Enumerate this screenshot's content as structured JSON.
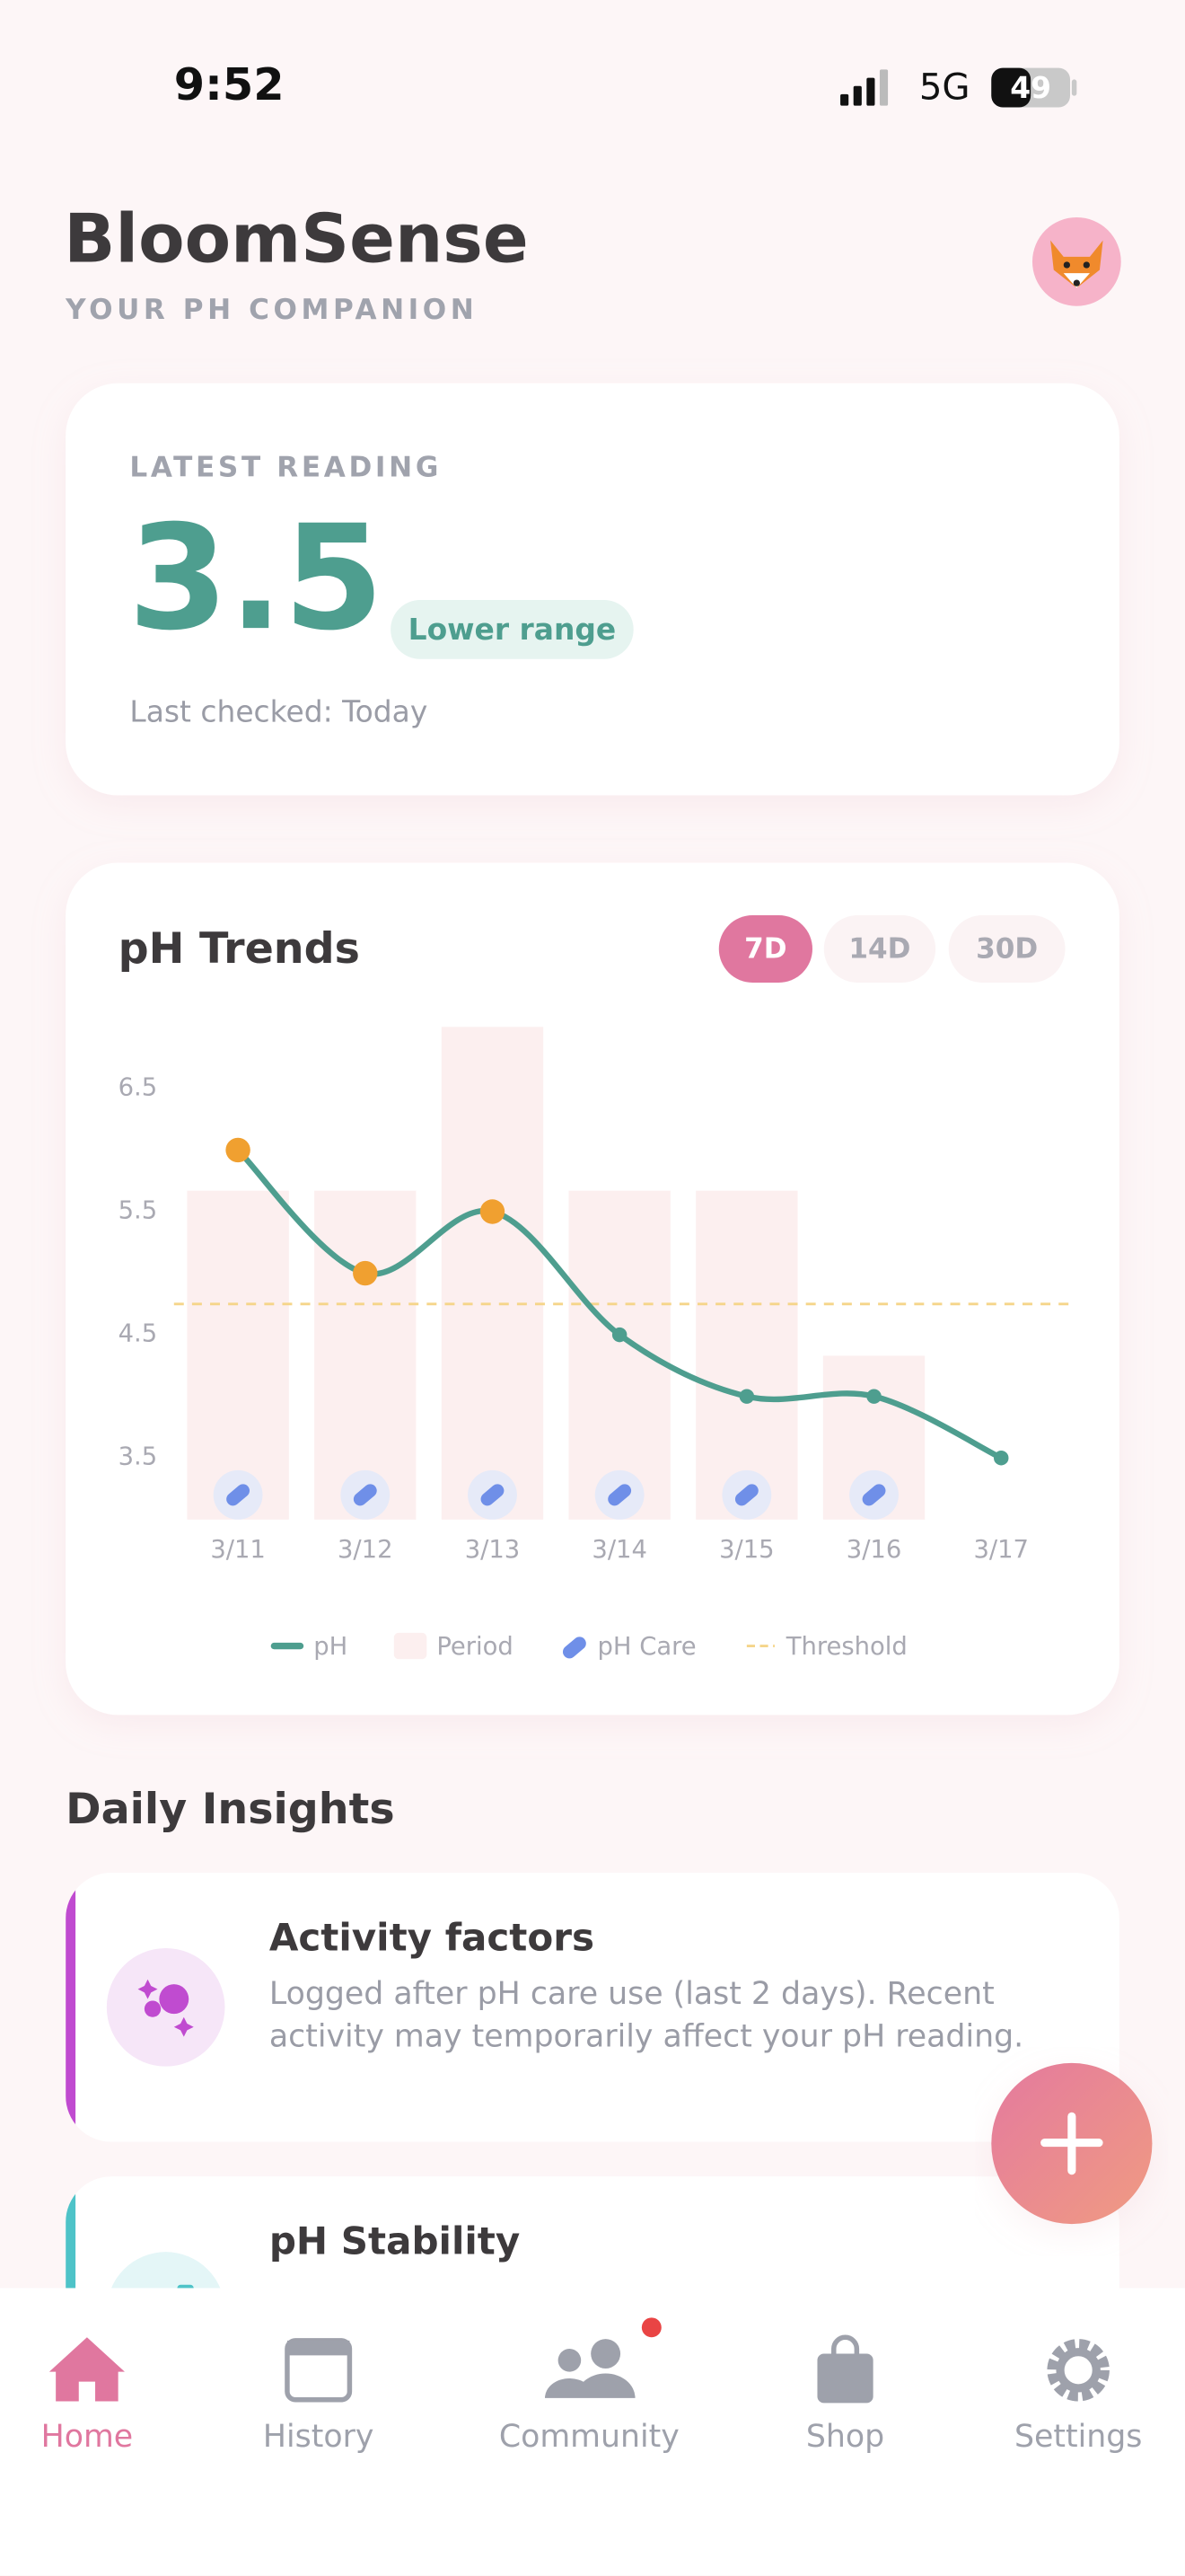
{
  "status": {
    "time": "9:52",
    "network": "5G",
    "battery": "49"
  },
  "header": {
    "title": "BloomSense",
    "subtitle": "YOUR PH COMPANION"
  },
  "reading": {
    "label": "LATEST READING",
    "value": "3.5",
    "badge": "Lower range",
    "checked": "Last checked: Today"
  },
  "trends": {
    "title": "pH Trends",
    "ranges": [
      "7D",
      "14D",
      "30D"
    ],
    "active": "7D"
  },
  "chart_data": {
    "type": "line",
    "categories": [
      "3/11",
      "3/12",
      "3/13",
      "3/14",
      "3/15",
      "3/16",
      "3/17"
    ],
    "ylim": [
      3,
      7
    ],
    "yticks": [
      3.5,
      4.5,
      5.5,
      6.5
    ],
    "series": [
      {
        "name": "pH",
        "color": "#4e9e8f",
        "highlight_color": "#f0a030",
        "values": [
          6.0,
          5.0,
          5.5,
          4.5,
          4.0,
          4.0,
          3.5
        ]
      },
      {
        "name": "Period",
        "color": "#fcefef",
        "values": [
          5.67,
          5.67,
          7.0,
          5.67,
          5.67,
          4.33,
          null
        ]
      },
      {
        "name": "pH Care",
        "color": "#6f8fe8",
        "values": [
          3.2,
          3.2,
          3.2,
          3.2,
          3.2,
          3.2,
          null
        ]
      }
    ],
    "threshold": {
      "name": "Threshold",
      "value": 4.75,
      "color": "#f5d58a"
    }
  },
  "insights": {
    "title": "Daily Insights",
    "cards": [
      {
        "title": "Activity factors",
        "text": "Logged after pH care use (last 2 days). Recent activity may temporarily affect your pH reading.",
        "color": "#c04bd0"
      },
      {
        "title": "pH Stability",
        "color": "#4ec3c8"
      }
    ]
  },
  "nav": {
    "items": [
      "Home",
      "History",
      "Community",
      "Shop",
      "Settings"
    ],
    "active": "Home"
  }
}
